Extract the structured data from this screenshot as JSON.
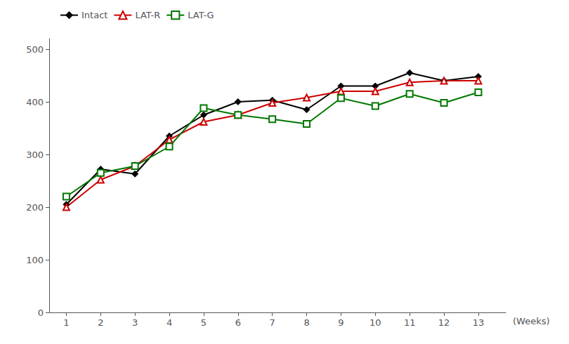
{
  "chart_data": {
    "type": "line",
    "x": [
      1,
      2,
      3,
      4,
      5,
      6,
      7,
      8,
      9,
      10,
      11,
      12,
      13
    ],
    "series": [
      {
        "name": "Intact",
        "color": "#000000",
        "marker": "diamond",
        "values": [
          205,
          272,
          263,
          335,
          375,
          400,
          403,
          385,
          430,
          430,
          455,
          440,
          448
        ]
      },
      {
        "name": "LAT-R",
        "color": "#cc0000",
        "marker": "open triangle",
        "values": [
          200,
          252,
          278,
          328,
          362,
          375,
          398,
          408,
          420,
          420,
          437,
          440,
          440
        ]
      },
      {
        "name": "LAT-G",
        "color": "#007700",
        "marker": "open square",
        "values": [
          220,
          265,
          278,
          315,
          388,
          375,
          367,
          358,
          407,
          392,
          415,
          398,
          418
        ]
      }
    ],
    "xlabel": "(Weeks)",
    "xlim": [
      0.5,
      13.8
    ],
    "xticks": [
      1,
      2,
      3,
      4,
      5,
      6,
      7,
      8,
      9,
      10,
      11,
      12,
      13
    ],
    "ylim": [
      0,
      520
    ],
    "yticks": [
      0,
      100,
      200,
      300,
      400,
      500
    ],
    "grid": false,
    "legend": "top left"
  }
}
